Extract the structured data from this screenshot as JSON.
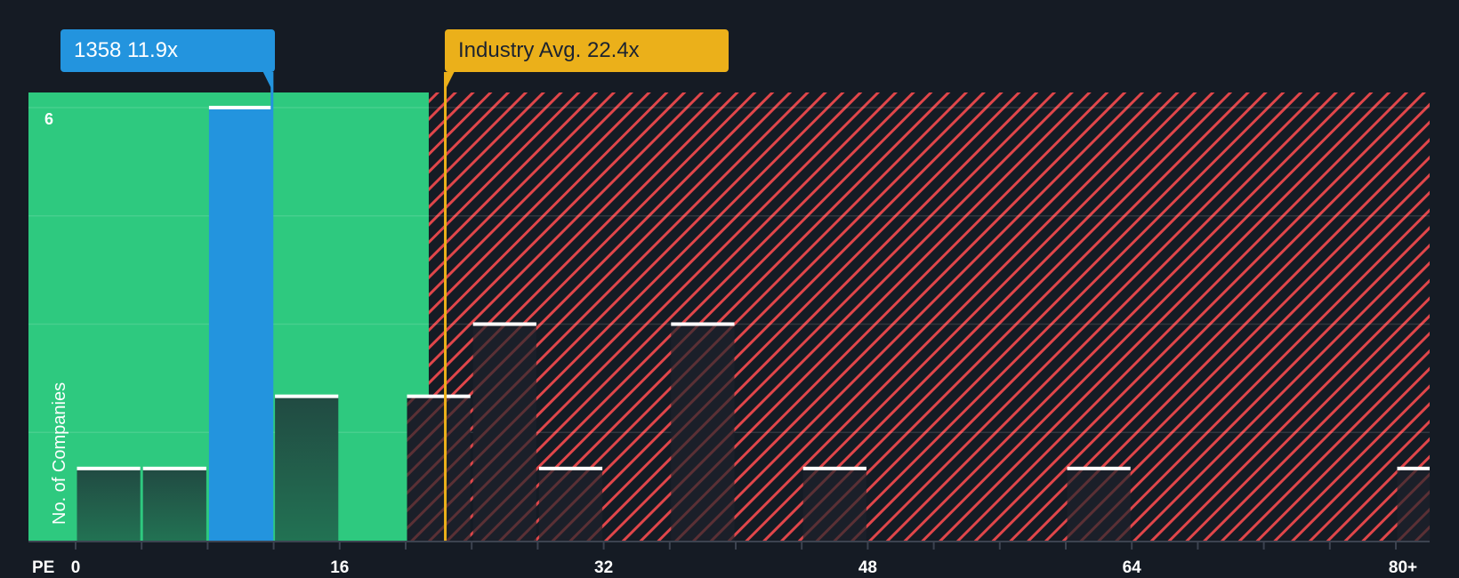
{
  "chart_data": {
    "type": "bar",
    "title": "",
    "xlabel": "PE",
    "ylabel": "No. of Companies",
    "x_ticks": [
      "0",
      "16",
      "32",
      "48",
      "64",
      "80+"
    ],
    "y_ticks": [
      "6"
    ],
    "ylim": [
      0,
      6.2
    ],
    "bin_width": 4,
    "categories": [
      "0-4",
      "4-8",
      "8-12",
      "12-16",
      "16-20",
      "20-24",
      "24-28",
      "28-32",
      "32-36",
      "36-40",
      "40-44",
      "44-48",
      "48-52",
      "52-56",
      "56-60",
      "60-64",
      "64-68",
      "68-72",
      "72-76",
      "76-80",
      "80+"
    ],
    "values": [
      1,
      1,
      6,
      2,
      0,
      2,
      3,
      1,
      0,
      3,
      0,
      1,
      0,
      0,
      0,
      1,
      0,
      0,
      0,
      0,
      1
    ],
    "highlight_bin": "8-12",
    "company": {
      "ticker": "1358",
      "pe": 11.9,
      "label": "1358 11.9x"
    },
    "industry_avg": {
      "pe": 22.4,
      "label": "Industry Avg. 22.4x"
    },
    "fair_zone_end_pe": 21.4,
    "grid": true,
    "colors": {
      "background": "#151b24",
      "fair_zone": "#2ec97f",
      "company_bar": "#2394de",
      "company_callout": "#2394de",
      "industry_callout": "#ebb01a",
      "industry_line": "#ebb01a",
      "hatch": "#e0464a",
      "bar_green_top": "#214a42",
      "bar_green_bottom": "#227253",
      "bar_cap": "#ffffff"
    }
  },
  "labels": {
    "company_callout": "1358 11.9x",
    "industry_callout": "Industry Avg. 22.4x",
    "y_axis": "No. of Companies",
    "x_axis": "PE",
    "y_tick_6": "6"
  }
}
